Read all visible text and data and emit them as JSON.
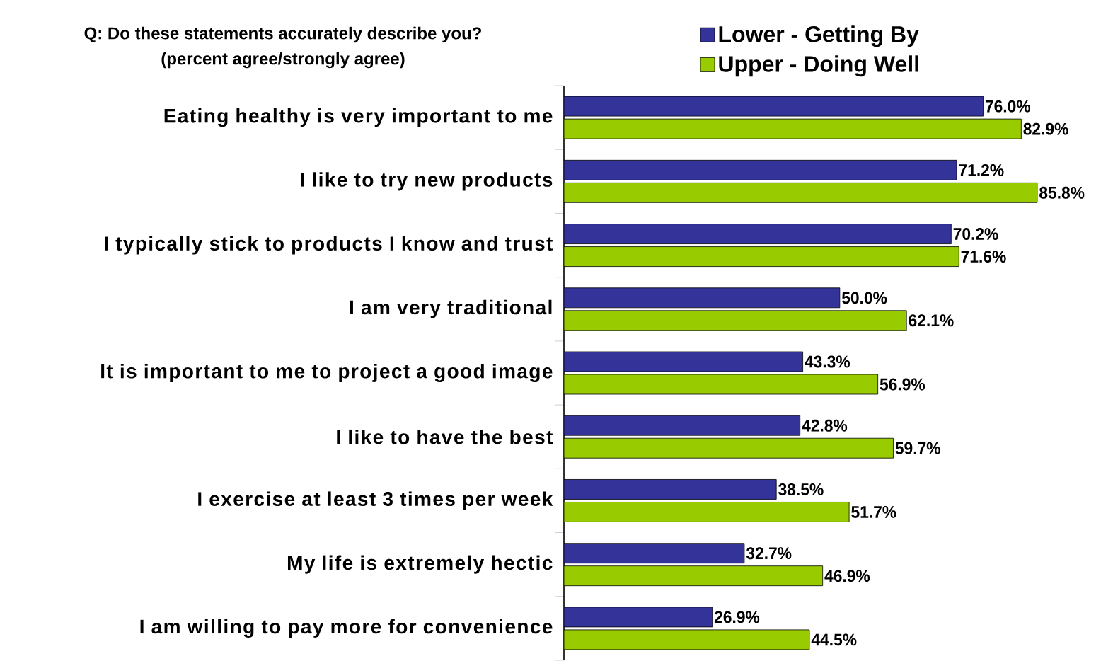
{
  "chart_data": {
    "type": "bar",
    "orientation": "horizontal",
    "title": "Q:  Do these statements accurately describe you?",
    "subtitle": "(percent agree/strongly agree)",
    "categories": [
      "Eating healthy is very important to me",
      "I like to try new products",
      "I typically stick to products I know and trust",
      "I am very traditional",
      "It is important to me to project a good image",
      "I like to have the best",
      "I exercise at least 3 times per week",
      "My life is extremely hectic",
      "I am willing to pay more for convenience"
    ],
    "series": [
      {
        "name": "Lower - Getting By",
        "color": "#333399",
        "values": [
          76.0,
          71.2,
          70.2,
          50.0,
          43.3,
          42.8,
          38.5,
          32.7,
          26.9
        ],
        "value_labels": [
          "76.0%",
          "71.2%",
          "70.2%",
          "50.0%",
          "43.3%",
          "42.8%",
          "38.5%",
          "32.7%",
          "26.9%"
        ]
      },
      {
        "name": "Upper - Doing Well",
        "color": "#99cc00",
        "values": [
          82.9,
          85.8,
          71.6,
          62.1,
          56.9,
          59.7,
          51.7,
          46.9,
          44.5
        ],
        "value_labels": [
          "82.9%",
          "85.8%",
          "71.6%",
          "62.1%",
          "56.9%",
          "59.7%",
          "51.7%",
          "46.9%",
          "44.5%"
        ]
      }
    ],
    "tick_labels": "y",
    "legend": "top",
    "grid": false
  }
}
